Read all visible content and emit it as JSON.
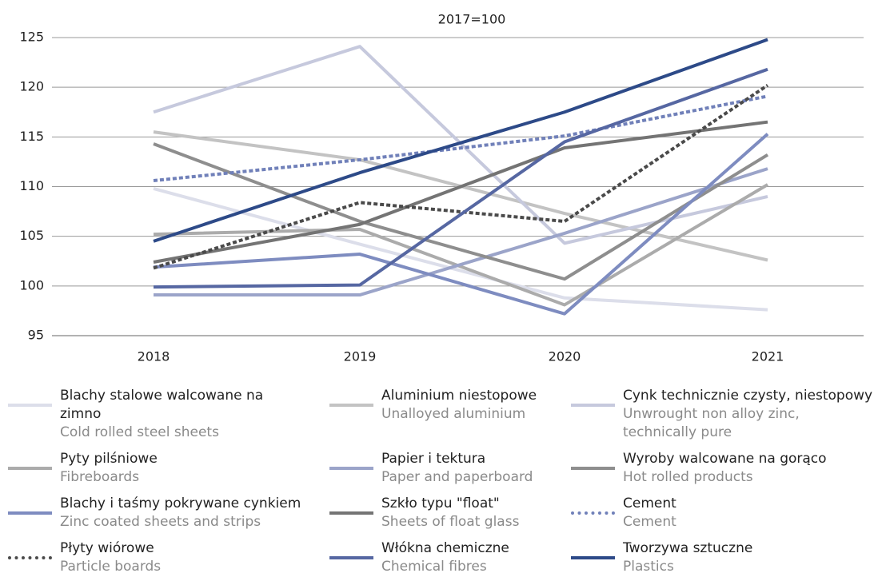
{
  "chart_data": {
    "type": "line",
    "title": "2017=100",
    "categories": [
      "2018",
      "2019",
      "2020",
      "2021"
    ],
    "ylim": [
      95,
      125
    ],
    "yticks": [
      95,
      100,
      105,
      110,
      115,
      120,
      125
    ],
    "grid": true,
    "series": [
      {
        "name": "Blachy stalowe walcowane na zimno",
        "name_en": "Cold rolled steel sheets",
        "color": "#dcdeea",
        "dash": "solid",
        "values": [
          109.8,
          104.2,
          98.8,
          97.6
        ]
      },
      {
        "name": "Aluminium niestopowe",
        "name_en": "Unalloyed aluminium",
        "color": "#c3c3c3",
        "dash": "solid",
        "values": [
          115.5,
          112.7,
          107.3,
          102.6
        ]
      },
      {
        "name": "Cynk technicznie czysty, niestopowy",
        "name_en": "Unwrought non alloy zinc, technically pure",
        "color": "#c6c9dd",
        "dash": "solid",
        "values": [
          117.5,
          124.1,
          104.3,
          109.0
        ]
      },
      {
        "name": "Pyty pilśniowe",
        "name_en": "Fibreboards",
        "color": "#ababab",
        "dash": "solid",
        "values": [
          105.2,
          105.7,
          98.1,
          110.2
        ]
      },
      {
        "name": "Papier i tektura",
        "name_en": "Paper and paperboard",
        "color": "#9ba4c9",
        "dash": "solid",
        "values": [
          99.1,
          99.1,
          105.3,
          111.8
        ]
      },
      {
        "name": "Wyroby walcowane na gorąco",
        "name_en": "Hot rolled products",
        "color": "#8e8e8e",
        "dash": "solid",
        "values": [
          114.3,
          106.5,
          100.7,
          113.2
        ]
      },
      {
        "name": "Blachy i taśmy pokrywane cynkiem",
        "name_en": "Zinc coated sheets and strips",
        "color": "#7e8cc0",
        "dash": "solid",
        "values": [
          101.9,
          103.2,
          97.2,
          115.3
        ]
      },
      {
        "name": "Szkło typu \"float\"",
        "name_en": "Sheets of float glass",
        "color": "#747474",
        "dash": "solid",
        "values": [
          102.4,
          106.2,
          113.9,
          116.5
        ]
      },
      {
        "name": "Cement",
        "name_en": "Cement",
        "color": "#7080b9",
        "dash": "dotted",
        "values": [
          110.6,
          112.7,
          115.1,
          119.1
        ]
      },
      {
        "name": "Płyty wiórowe",
        "name_en": "Particle boards",
        "color": "#4a4a4a",
        "dash": "dotted",
        "values": [
          101.8,
          108.4,
          106.5,
          120.2
        ]
      },
      {
        "name": "Włókna chemiczne",
        "name_en": "Chemical fibres",
        "color": "#5667a2",
        "dash": "solid",
        "values": [
          99.9,
          100.1,
          114.5,
          121.8
        ]
      },
      {
        "name": "Tworzywa sztuczne",
        "name_en": "Plastics",
        "color": "#2d4a88",
        "dash": "solid",
        "values": [
          104.5,
          111.4,
          117.5,
          124.8
        ]
      }
    ]
  }
}
